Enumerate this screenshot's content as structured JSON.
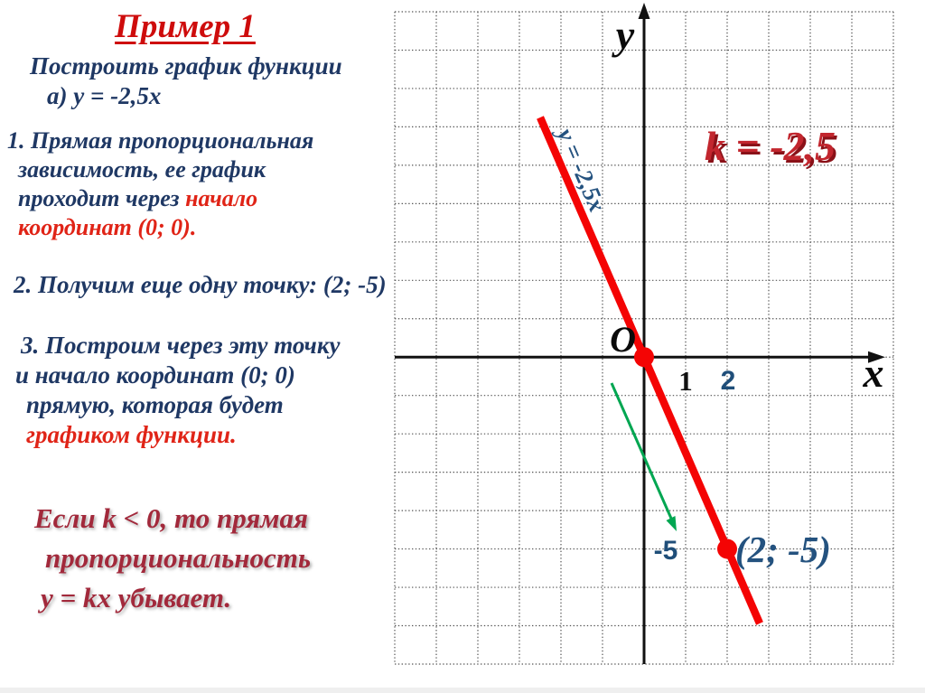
{
  "left": {
    "title": "Пример 1",
    "task": {
      "line1": "Построить график функции",
      "line2": "а) у =  -2,5х"
    },
    "step1": {
      "l1": "1. Прямая пропорциональная",
      "l2": "зависимость, ее график",
      "l3a": "проходит через ",
      "l3b": "начало",
      "l4": "координат (0; 0)."
    },
    "step2": "2. Получим еще одну точку:  (2; -5)",
    "step3": {
      "l1": "3. Построим через эту точку",
      "l2": "и начало координат  (0; 0)",
      "l3": "прямую, которая будет",
      "l4": "графиком   функции."
    },
    "note": {
      "l1": "Если  k < 0,  то прямая",
      "l2": "пропорциональность",
      "l3": "у = kх  убывает."
    }
  },
  "graph": {
    "y_axis_label": "y",
    "x_axis_label": "x",
    "origin_label": "O",
    "tick_1": "1",
    "tick_2": "2",
    "tick_minus5": "-5",
    "point_label": "(2; -5)",
    "k_label": "k = -2,5",
    "line_label": "у = -2,5х"
  },
  "colors": {
    "navy_text": "#1F3864",
    "red_text": "#E02417",
    "title_red": "#CE0C0C",
    "note_maroon": "#A2293B",
    "k_red": "#C2262E",
    "function_line_red": "#F40404",
    "arrow_green": "#00A651",
    "blue_labels": "#24527F",
    "axis_black": "#111111"
  },
  "chart_data": {
    "type": "line",
    "equation": "y = -2,5x",
    "slope_k": -2.5,
    "points": [
      {
        "x": 0,
        "y": 0
      },
      {
        "x": 2,
        "y": -5
      }
    ],
    "x_ticks_labeled": [
      1,
      2
    ],
    "y_ticks_labeled": [
      -5
    ],
    "xlim": [
      -6,
      6
    ],
    "ylim": [
      -8,
      9
    ],
    "grid": true,
    "legend_position": "none",
    "annotations": [
      "k = -2,5",
      "(2; -5)",
      "у = -2,5х"
    ]
  }
}
